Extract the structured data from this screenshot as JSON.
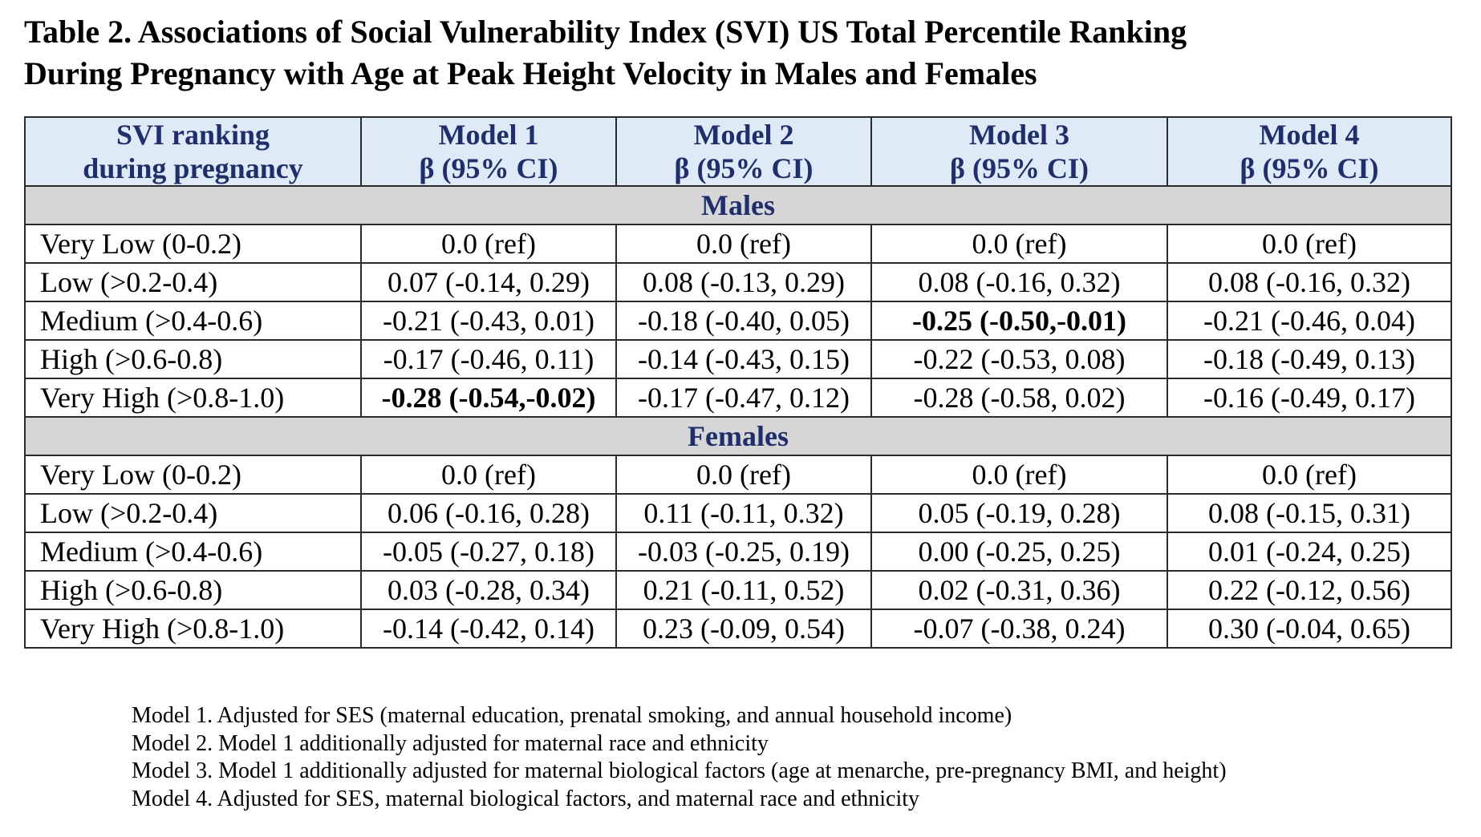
{
  "title": {
    "line1": "Table 2. Associations of Social Vulnerability Index (SVI) US Total Percentile Ranking",
    "line2": "During Pregnancy with Age at Peak Height Velocity in Males and Females"
  },
  "table": {
    "headers": [
      {
        "line1": "SVI ranking",
        "line2": "during pregnancy"
      },
      {
        "line1": "Model 1",
        "line2": "β (95% CI)"
      },
      {
        "line1": "Model 2",
        "line2": "β (95% CI)"
      },
      {
        "line1": "Model 3",
        "line2": "β (95% CI)"
      },
      {
        "line1": "Model 4",
        "line2": "β (95% CI)"
      }
    ],
    "sections": [
      {
        "name": "Males",
        "rows": [
          {
            "label": "Very Low (0-0.2)",
            "values": [
              "0.0 (ref)",
              "0.0 (ref)",
              "0.0 (ref)",
              "0.0 (ref)"
            ],
            "bold": [
              false,
              false,
              false,
              false
            ]
          },
          {
            "label": "Low (>0.2-0.4)",
            "values": [
              "0.07 (-0.14, 0.29)",
              "0.08 (-0.13, 0.29)",
              "0.08 (-0.16, 0.32)",
              "0.08 (-0.16, 0.32)"
            ],
            "bold": [
              false,
              false,
              false,
              false
            ]
          },
          {
            "label": "Medium (>0.4-0.6)",
            "values": [
              "-0.21 (-0.43, 0.01)",
              "-0.18 (-0.40, 0.05)",
              "-0.25 (-0.50,-0.01)",
              "-0.21 (-0.46, 0.04)"
            ],
            "bold": [
              false,
              false,
              true,
              false
            ]
          },
          {
            "label": "High (>0.6-0.8)",
            "values": [
              "-0.17 (-0.46, 0.11)",
              "-0.14 (-0.43, 0.15)",
              "-0.22 (-0.53, 0.08)",
              "-0.18 (-0.49, 0.13)"
            ],
            "bold": [
              false,
              false,
              false,
              false
            ]
          },
          {
            "label": "Very High (>0.8-1.0)",
            "values": [
              "-0.28 (-0.54,-0.02)",
              "-0.17 (-0.47, 0.12)",
              "-0.28 (-0.58, 0.02)",
              "-0.16 (-0.49, 0.17)"
            ],
            "bold": [
              true,
              false,
              false,
              false
            ]
          }
        ]
      },
      {
        "name": "Females",
        "rows": [
          {
            "label": "Very Low (0-0.2)",
            "values": [
              "0.0 (ref)",
              "0.0 (ref)",
              "0.0 (ref)",
              "0.0 (ref)"
            ],
            "bold": [
              false,
              false,
              false,
              false
            ]
          },
          {
            "label": "Low (>0.2-0.4)",
            "values": [
              "0.06 (-0.16, 0.28)",
              "0.11 (-0.11, 0.32)",
              "0.05 (-0.19, 0.28)",
              "0.08 (-0.15, 0.31)"
            ],
            "bold": [
              false,
              false,
              false,
              false
            ]
          },
          {
            "label": "Medium (>0.4-0.6)",
            "values": [
              "-0.05 (-0.27, 0.18)",
              "-0.03 (-0.25, 0.19)",
              "0.00 (-0.25, 0.25)",
              "0.01 (-0.24, 0.25)"
            ],
            "bold": [
              false,
              false,
              false,
              false
            ]
          },
          {
            "label": "High (>0.6-0.8)",
            "values": [
              "0.03 (-0.28, 0.34)",
              "0.21 (-0.11, 0.52)",
              "0.02 (-0.31, 0.36)",
              "0.22 (-0.12, 0.56)"
            ],
            "bold": [
              false,
              false,
              false,
              false
            ]
          },
          {
            "label": "Very High (>0.8-1.0)",
            "values": [
              "-0.14 (-0.42, 0.14)",
              "0.23 (-0.09, 0.54)",
              "-0.07 (-0.38, 0.24)",
              "0.30 (-0.04, 0.65)"
            ],
            "bold": [
              false,
              false,
              false,
              false
            ]
          }
        ]
      }
    ]
  },
  "notes": [
    "Model 1. Adjusted for SES (maternal education, prenatal smoking, and annual household income)",
    "Model 2. Model 1 additionally adjusted for maternal race and ethnicity",
    "Model 3. Model 1 additionally adjusted for maternal biological factors (age at menarche, pre-pregnancy BMI, and height)",
    "Model 4. Adjusted for SES, maternal biological factors, and maternal race and ethnicity"
  ],
  "colors": {
    "header_background": "#deeaf6",
    "header_text": "#1f2f6e",
    "section_background": "#d6d6d6",
    "border": "#2b2b2b"
  }
}
